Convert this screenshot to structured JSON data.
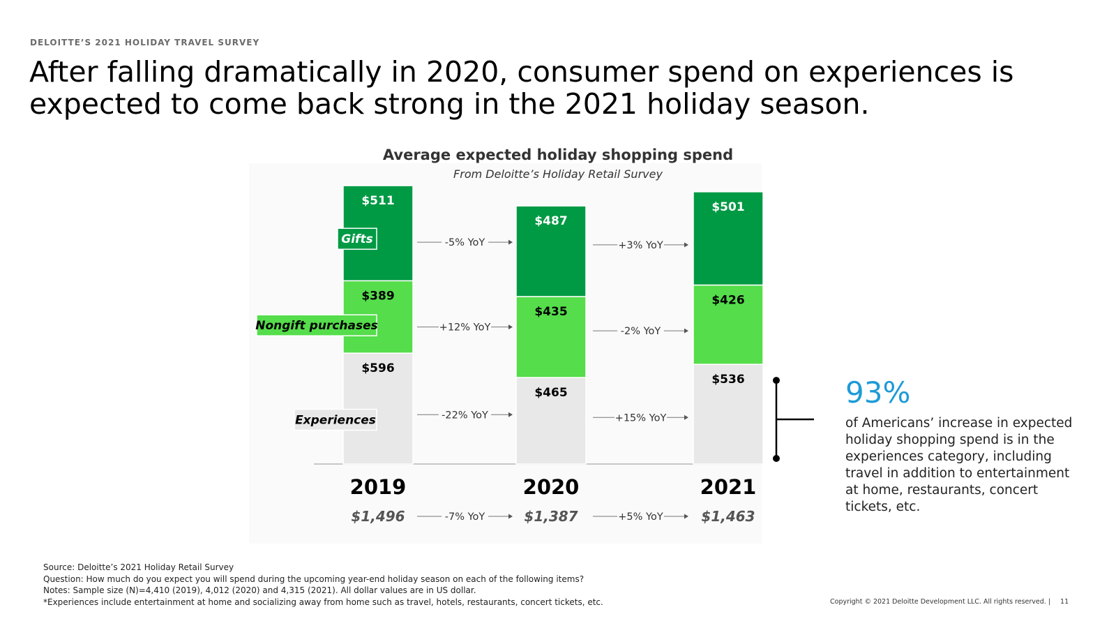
{
  "header": {
    "eyebrow": "DELOITTE’S 2021 HOLIDAY TRAVEL SURVEY",
    "headline": "After falling dramatically in 2020, consumer spend on experiences is expected to come back strong in the 2021 holiday season."
  },
  "chart_data": {
    "type": "bar",
    "stacked": true,
    "title": "Average expected holiday shopping spend",
    "subtitle": "From Deloitte’s Holiday Retail Survey",
    "categories": [
      "2019",
      "2020",
      "2021"
    ],
    "series": [
      {
        "name": "Experiences",
        "values": [
          596,
          465,
          536
        ],
        "labels": [
          "$596",
          "$465",
          "$536"
        ],
        "color": "#e8e8e8",
        "text_color": "#000000"
      },
      {
        "name": "Nongift purchases",
        "values": [
          389,
          435,
          426
        ],
        "labels": [
          "$389",
          "$435",
          "$426"
        ],
        "color": "#55dd4b",
        "text_color": "#000000"
      },
      {
        "name": "Gifts",
        "values": [
          511,
          487,
          501
        ],
        "labels": [
          "$511",
          "$487",
          "$501"
        ],
        "color": "#009a44",
        "text_color": "#ffffff"
      }
    ],
    "totals": [
      "$1,496",
      "$1,387",
      "$1,463"
    ],
    "yoy": {
      "Gifts": [
        "-5% YoY",
        "+3% YoY"
      ],
      "Nongift purchases": [
        "+12% YoY",
        "-2% YoY"
      ],
      "Experiences": [
        "-22% YoY",
        "+15% YoY"
      ],
      "Total": [
        "-7% YoY",
        "+5% YoY"
      ]
    },
    "ylim": [
      0,
      1500
    ],
    "grid": false,
    "legend": "left-of-first-bar"
  },
  "callout": {
    "stat": "93%",
    "text": "of Americans’ increase in expected holiday shopping spend is in the experiences category, including travel in addition to entertainment at home, restaurants, concert tickets, etc."
  },
  "footnotes": [
    "Source: Deloitte’s 2021 Holiday Retail Survey",
    "Question: How much do you expect you will spend during the upcoming year-end holiday season on each of the following items?",
    "Notes: Sample size (N)=4,410 (2019), 4,012 (2020) and 4,315 (2021). All dollar values are in US dollar.",
    "*Experiences include entertainment at home and socializing away from home such as travel, hotels, restaurants, concert tickets, etc."
  ],
  "footer": {
    "copyright": "Copyright © 2021 Deloitte Development LLC. All rights reserved.  |",
    "page": "11"
  }
}
